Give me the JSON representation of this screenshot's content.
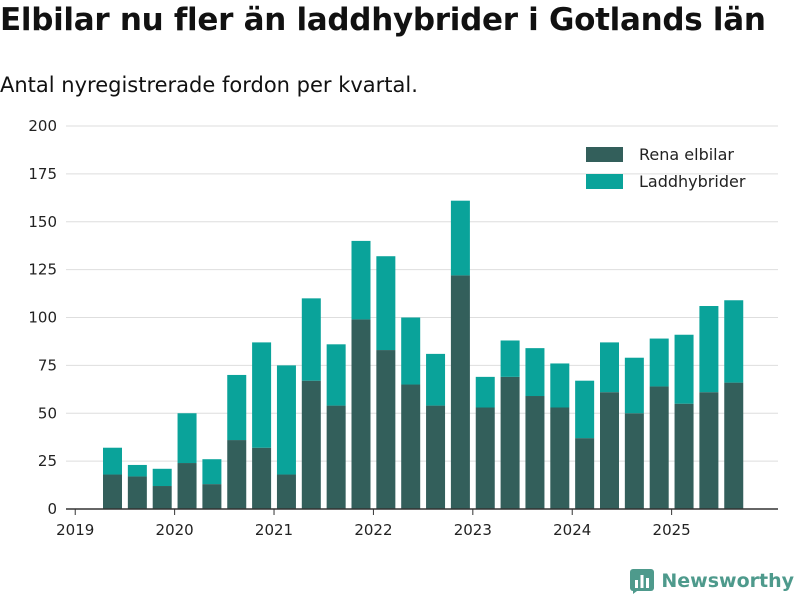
{
  "chart_data": {
    "type": "bar",
    "stacked": true,
    "title": "Elbilar nu fler än laddhybrider i Gotlands län",
    "subtitle": "Antal nyregistrerade fordon per kvartal.",
    "xlabel": "",
    "ylabel": "",
    "ylim": [
      0,
      200
    ],
    "yticks": [
      0,
      25,
      50,
      75,
      100,
      125,
      150,
      175,
      200
    ],
    "xticks": [
      "2019",
      "2020",
      "2021",
      "2022",
      "2023",
      "2024",
      "2025"
    ],
    "grid": true,
    "legend_position": "top-right",
    "categories": [
      "2019 Q2",
      "2019 Q3",
      "2019 Q4",
      "2020 Q1",
      "2020 Q2",
      "2020 Q3",
      "2020 Q4",
      "2021 Q1",
      "2021 Q2",
      "2021 Q3",
      "2021 Q4",
      "2022 Q1",
      "2022 Q2",
      "2022 Q3",
      "2022 Q4",
      "2023 Q1",
      "2023 Q2",
      "2023 Q3",
      "2023 Q4",
      "2024 Q1",
      "2024 Q2",
      "2024 Q3",
      "2024 Q4",
      "2025 Q1",
      "2025 Q2",
      "2025 Q3"
    ],
    "series": [
      {
        "name": "Rena elbilar",
        "color": "#335f5b",
        "values": [
          18,
          17,
          12,
          24,
          13,
          36,
          32,
          18,
          67,
          54,
          99,
          83,
          65,
          54,
          122,
          53,
          69,
          59,
          53,
          37,
          61,
          50,
          64,
          55,
          61,
          66
        ]
      },
      {
        "name": "Laddhybrider",
        "color": "#0aa39a",
        "values": [
          14,
          6,
          9,
          26,
          13,
          34,
          55,
          57,
          43,
          32,
          41,
          49,
          35,
          27,
          39,
          16,
          19,
          25,
          23,
          30,
          26,
          29,
          25,
          36,
          45,
          43
        ]
      }
    ]
  },
  "brand": {
    "name": "Newsworthy",
    "logo_icon": "bar-chart-logo-icon",
    "color": "#4e9a8c"
  }
}
